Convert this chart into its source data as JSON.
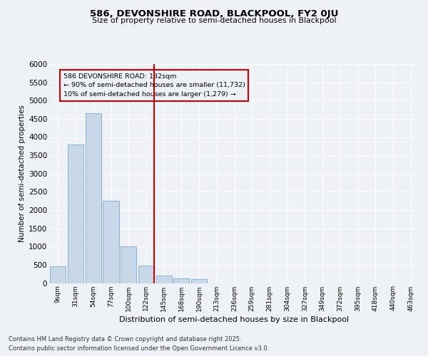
{
  "title": "586, DEVONSHIRE ROAD, BLACKPOOL, FY2 0JU",
  "subtitle": "Size of property relative to semi-detached houses in Blackpool",
  "xlabel": "Distribution of semi-detached houses by size in Blackpool",
  "ylabel": "Number of semi-detached properties",
  "categories": [
    "9sqm",
    "31sqm",
    "54sqm",
    "77sqm",
    "100sqm",
    "122sqm",
    "145sqm",
    "168sqm",
    "190sqm",
    "213sqm",
    "236sqm",
    "259sqm",
    "281sqm",
    "304sqm",
    "327sqm",
    "349sqm",
    "372sqm",
    "395sqm",
    "418sqm",
    "440sqm",
    "463sqm"
  ],
  "values": [
    450,
    3800,
    4650,
    2250,
    1000,
    470,
    200,
    130,
    110,
    0,
    0,
    0,
    0,
    0,
    0,
    0,
    0,
    0,
    0,
    0,
    0
  ],
  "bar_color": "#c8d8e8",
  "bar_edge_color": "#7aaac8",
  "annotation_text_line1": "586 DEVONSHIRE ROAD: 132sqm",
  "annotation_text_line2": "← 90% of semi-detached houses are smaller (11,732)",
  "annotation_text_line3": "10% of semi-detached houses are larger (1,279) →",
  "ylim": [
    0,
    6000
  ],
  "yticks": [
    0,
    500,
    1000,
    1500,
    2000,
    2500,
    3000,
    3500,
    4000,
    4500,
    5000,
    5500,
    6000
  ],
  "red_line_color": "#cc0000",
  "annotation_box_color": "#cc0000",
  "bg_color": "#eef2f7",
  "grid_color": "#ffffff",
  "footer_line1": "Contains HM Land Registry data © Crown copyright and database right 2025.",
  "footer_line2": "Contains public sector information licensed under the Open Government Licence v3.0."
}
